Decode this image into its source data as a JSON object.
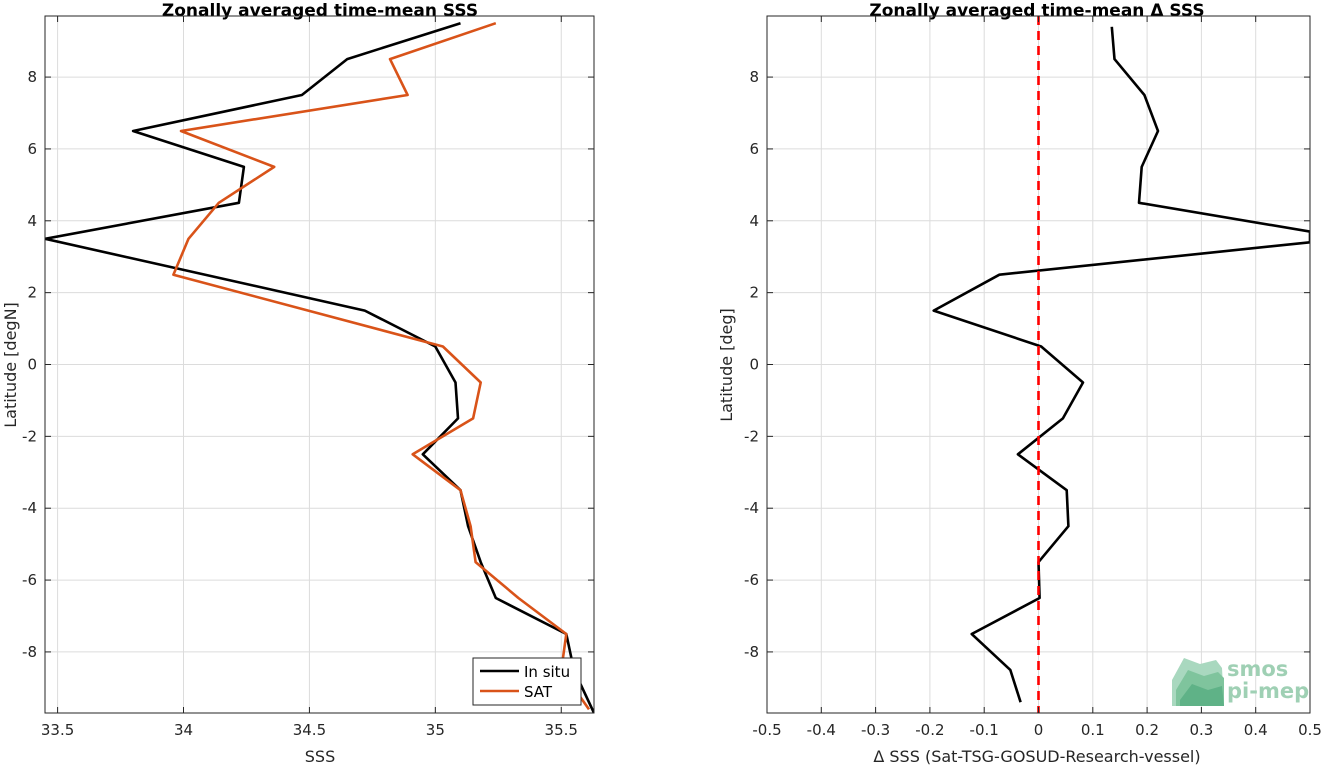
{
  "chart_data": [
    {
      "type": "line",
      "title": "Zonally averaged time-mean SSS",
      "xlabel": "SSS",
      "ylabel": "Latitude [degN]",
      "xlim": [
        33.45,
        35.63
      ],
      "ylim": [
        -9.7,
        9.7
      ],
      "xticks": [
        33.5,
        34,
        34.5,
        35,
        35.5
      ],
      "xtick_labels": [
        "33.5",
        "34",
        "34.5",
        "35",
        "35.5"
      ],
      "yticks": [
        8,
        6,
        4,
        2,
        0,
        -2,
        -4,
        -6,
        -8
      ],
      "ytick_labels": [
        "8",
        "6",
        "4",
        "2",
        "0",
        "-2",
        "-4",
        "-6",
        "-8"
      ],
      "grid": true,
      "legend": "bottom-right",
      "series": [
        {
          "name": "In situ",
          "color": "#000000",
          "points": [
            [
              35.1,
              9.5
            ],
            [
              34.65,
              8.5
            ],
            [
              34.47,
              7.5
            ],
            [
              33.8,
              6.5
            ],
            [
              34.24,
              5.5
            ],
            [
              34.22,
              4.5
            ],
            [
              33.45,
              3.5
            ],
            [
              34.72,
              1.5
            ],
            [
              35.0,
              0.5
            ],
            [
              35.08,
              -0.5
            ],
            [
              35.09,
              -1.5
            ],
            [
              34.95,
              -2.5
            ],
            [
              35.1,
              -3.5
            ],
            [
              35.13,
              -4.5
            ],
            [
              35.18,
              -5.5
            ],
            [
              35.24,
              -6.5
            ],
            [
              35.52,
              -7.5
            ],
            [
              35.55,
              -8.5
            ],
            [
              35.63,
              -9.7
            ]
          ]
        },
        {
          "name": "SAT",
          "color": "#d95319",
          "points": [
            [
              35.24,
              9.5
            ],
            [
              34.82,
              8.5
            ],
            [
              34.89,
              7.5
            ],
            [
              33.99,
              6.5
            ],
            [
              34.36,
              5.5
            ],
            [
              34.14,
              4.5
            ],
            [
              34.02,
              3.5
            ],
            [
              33.96,
              2.5
            ],
            [
              35.03,
              0.5
            ],
            [
              35.18,
              -0.5
            ],
            [
              35.15,
              -1.5
            ],
            [
              34.91,
              -2.5
            ],
            [
              35.1,
              -3.5
            ],
            [
              35.14,
              -4.5
            ],
            [
              35.16,
              -5.5
            ],
            [
              35.33,
              -6.5
            ],
            [
              35.52,
              -7.5
            ],
            [
              35.5,
              -8.5
            ],
            [
              35.61,
              -9.6
            ]
          ]
        }
      ]
    },
    {
      "type": "line",
      "title": "Zonally averaged time-mean Δ SSS",
      "xlabel": "Δ SSS (Sat-TSG-GOSUD-Research-vessel)",
      "ylabel": "Latitude [deg]",
      "xlim": [
        -0.5,
        0.5
      ],
      "ylim": [
        -9.7,
        9.7
      ],
      "xticks": [
        -0.5,
        -0.4,
        -0.3,
        -0.2,
        -0.1,
        0,
        0.1,
        0.2,
        0.3,
        0.4,
        0.5
      ],
      "xtick_labels": [
        "-0.5",
        "-0.4",
        "-0.3",
        "-0.2",
        "-0.1",
        "0",
        "0.1",
        "0.2",
        "0.3",
        "0.4",
        "0.5"
      ],
      "yticks": [
        8,
        6,
        4,
        2,
        0,
        -2,
        -4,
        -6,
        -8
      ],
      "ytick_labels": [
        "8",
        "6",
        "4",
        "2",
        "0",
        "-2",
        "-4",
        "-6",
        "-8"
      ],
      "grid": true,
      "reference_line": {
        "x": 0,
        "color": "#ff0000",
        "style": "dashed"
      },
      "series": [
        {
          "color": "#000000",
          "points": [
            [
              0.135,
              9.4
            ],
            [
              0.14,
              8.5
            ],
            [
              0.195,
              7.5
            ],
            [
              0.22,
              6.5
            ],
            [
              0.19,
              5.5
            ],
            [
              0.185,
              4.5
            ],
            [
              0.5,
              3.7
            ],
            [
              0.5,
              3.4
            ],
            [
              -0.072,
              2.5
            ],
            [
              -0.193,
              1.5
            ],
            [
              0.005,
              0.5
            ],
            [
              0.082,
              -0.5
            ],
            [
              0.045,
              -1.5
            ],
            [
              -0.038,
              -2.5
            ],
            [
              0.052,
              -3.5
            ],
            [
              0.055,
              -4.5
            ],
            [
              0.0,
              -5.5
            ],
            [
              0.002,
              -6.5
            ],
            [
              -0.123,
              -7.5
            ],
            [
              -0.052,
              -8.5
            ],
            [
              -0.033,
              -9.4
            ]
          ]
        }
      ]
    }
  ],
  "legend": {
    "entries": [
      {
        "label": "In situ",
        "color": "#000000"
      },
      {
        "label": "SAT",
        "color": "#d95319"
      }
    ]
  },
  "logo": {
    "line1": "smos",
    "line2": "pi-mep",
    "color": "#9fd0b4"
  }
}
